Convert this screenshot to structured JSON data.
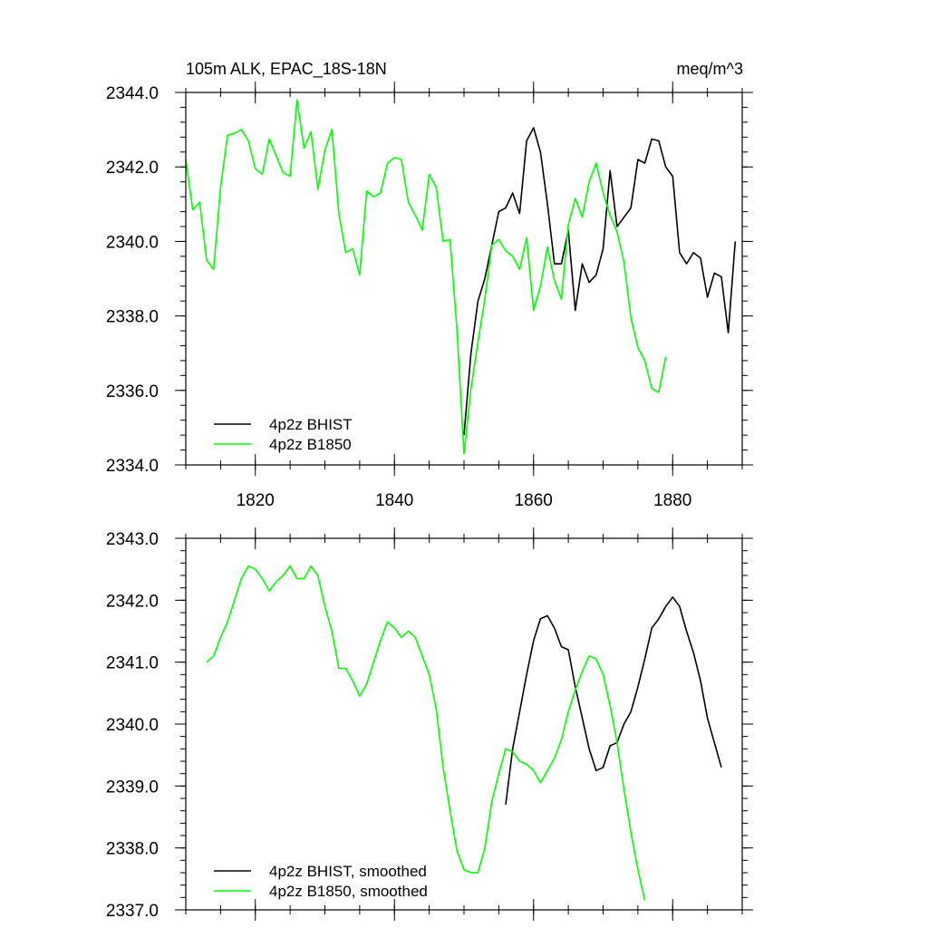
{
  "chart_data": [
    {
      "type": "line",
      "title": "105m ALK, EPAC_18S-18N",
      "units": "meq/m^3",
      "xlim": [
        1810,
        1890
      ],
      "ylim": [
        2334,
        2344
      ],
      "xticks": [
        1820,
        1840,
        1860,
        1880
      ],
      "xtick_labels": [
        "1820",
        "1840",
        "1860",
        "1880"
      ],
      "yticks": [
        2334,
        2336,
        2338,
        2340,
        2342,
        2344
      ],
      "ytick_labels": [
        "2334.0",
        "2336.0",
        "2338.0",
        "2340.0",
        "2342.0",
        "2344.0"
      ],
      "legend_position": "bottom-left",
      "series": [
        {
          "name": "4p2z BHIST",
          "color": "#000000",
          "x": [
            1850,
            1851,
            1852,
            1853,
            1854,
            1855,
            1856,
            1857,
            1858,
            1859,
            1860,
            1861,
            1862,
            1863,
            1864,
            1865,
            1866,
            1867,
            1868,
            1869,
            1870,
            1871,
            1872,
            1873,
            1874,
            1875,
            1876,
            1877,
            1878,
            1879,
            1880,
            1881,
            1882,
            1883,
            1884,
            1885,
            1886,
            1887,
            1888,
            1889
          ],
          "y": [
            2334.8,
            2337.0,
            2338.4,
            2339.0,
            2339.9,
            2340.8,
            2340.9,
            2341.3,
            2340.75,
            2342.7,
            2343.05,
            2342.4,
            2341.0,
            2339.4,
            2339.4,
            2340.3,
            2338.15,
            2339.4,
            2338.9,
            2339.1,
            2339.8,
            2341.9,
            2340.4,
            2340.65,
            2340.9,
            2342.2,
            2342.1,
            2342.75,
            2342.7,
            2342.0,
            2341.75,
            2339.7,
            2339.4,
            2339.7,
            2339.55,
            2338.5,
            2339.15,
            2339.05,
            2337.55,
            2340.0
          ]
        },
        {
          "name": "4p2z B1850",
          "color": "#00ff00",
          "x": [
            1810,
            1811,
            1812,
            1813,
            1814,
            1815,
            1816,
            1817,
            1818,
            1819,
            1820,
            1821,
            1822,
            1823,
            1824,
            1825,
            1826,
            1827,
            1828,
            1829,
            1830,
            1831,
            1832,
            1833,
            1834,
            1835,
            1836,
            1837,
            1838,
            1839,
            1840,
            1841,
            1842,
            1843,
            1844,
            1845,
            1846,
            1847,
            1848,
            1849,
            1850,
            1851,
            1852,
            1853,
            1854,
            1855,
            1856,
            1857,
            1858,
            1859,
            1860,
            1861,
            1862,
            1863,
            1864,
            1865,
            1866,
            1867,
            1868,
            1869,
            1870,
            1871,
            1872,
            1873,
            1874,
            1875,
            1876,
            1877,
            1878,
            1879
          ],
          "y": [
            2342.2,
            2340.85,
            2341.05,
            2339.5,
            2339.25,
            2341.45,
            2342.85,
            2342.9,
            2343.0,
            2342.7,
            2341.95,
            2341.8,
            2342.75,
            2342.3,
            2341.85,
            2341.75,
            2343.8,
            2342.5,
            2342.95,
            2341.4,
            2342.45,
            2343.0,
            2340.75,
            2339.7,
            2339.8,
            2339.1,
            2341.35,
            2341.2,
            2341.3,
            2342.1,
            2342.25,
            2342.2,
            2341.05,
            2340.7,
            2340.3,
            2341.8,
            2341.45,
            2340.0,
            2340.05,
            2337.6,
            2334.3,
            2336.05,
            2337.3,
            2338.45,
            2339.9,
            2340.05,
            2339.75,
            2339.6,
            2339.25,
            2340.1,
            2338.15,
            2338.8,
            2339.85,
            2338.95,
            2338.45,
            2340.45,
            2341.15,
            2340.65,
            2341.6,
            2342.1,
            2341.3,
            2340.7,
            2340.25,
            2339.45,
            2337.95,
            2337.15,
            2336.8,
            2336.05,
            2335.95,
            2336.9
          ]
        }
      ]
    },
    {
      "type": "line",
      "xlim": [
        1810,
        1890
      ],
      "ylim": [
        2337,
        2343
      ],
      "xticks": [
        1820,
        1840,
        1860,
        1880
      ],
      "yticks": [
        2337,
        2338,
        2339,
        2340,
        2341,
        2342,
        2343
      ],
      "ytick_labels": [
        "2337.0",
        "2338.0",
        "2339.0",
        "2340.0",
        "2341.0",
        "2342.0",
        "2343.0"
      ],
      "legend_position": "bottom-left",
      "series": [
        {
          "name": "4p2z BHIST, smoothed",
          "color": "#000000",
          "x": [
            1856,
            1857,
            1858,
            1859,
            1860,
            1861,
            1862,
            1863,
            1864,
            1865,
            1866,
            1867,
            1868,
            1869,
            1870,
            1871,
            1872,
            1873,
            1874,
            1875,
            1876,
            1877,
            1878,
            1879,
            1880,
            1881,
            1882,
            1883,
            1884,
            1885,
            1886,
            1887
          ],
          "y": [
            2338.7,
            2339.6,
            2340.2,
            2340.8,
            2341.35,
            2341.7,
            2341.75,
            2341.55,
            2341.25,
            2341.2,
            2340.6,
            2340.1,
            2339.6,
            2339.25,
            2339.3,
            2339.65,
            2339.7,
            2340.0,
            2340.2,
            2340.6,
            2341.05,
            2341.55,
            2341.7,
            2341.9,
            2342.05,
            2341.9,
            2341.5,
            2341.15,
            2340.7,
            2340.1,
            2339.7,
            2339.3
          ]
        },
        {
          "name": "4p2z B1850, smoothed",
          "color": "#00ff00",
          "x": [
            1813,
            1814,
            1815,
            1816,
            1817,
            1818,
            1819,
            1820,
            1821,
            1822,
            1823,
            1824,
            1825,
            1826,
            1827,
            1828,
            1829,
            1830,
            1831,
            1832,
            1833,
            1834,
            1835,
            1836,
            1837,
            1838,
            1839,
            1840,
            1841,
            1842,
            1843,
            1844,
            1845,
            1846,
            1847,
            1848,
            1849,
            1850,
            1851,
            1852,
            1853,
            1854,
            1855,
            1856,
            1857,
            1858,
            1859,
            1860,
            1861,
            1862,
            1863,
            1864,
            1865,
            1866,
            1867,
            1868,
            1869,
            1870,
            1871,
            1872,
            1873,
            1874,
            1875,
            1876
          ],
          "y": [
            2341.0,
            2341.1,
            2341.4,
            2341.65,
            2342.0,
            2342.35,
            2342.55,
            2342.5,
            2342.35,
            2342.15,
            2342.3,
            2342.4,
            2342.55,
            2342.35,
            2342.35,
            2342.55,
            2342.4,
            2341.9,
            2341.5,
            2340.9,
            2340.9,
            2340.7,
            2340.45,
            2340.65,
            2341.0,
            2341.35,
            2341.65,
            2341.55,
            2341.4,
            2341.5,
            2341.4,
            2341.1,
            2340.8,
            2340.25,
            2339.3,
            2338.6,
            2337.95,
            2337.65,
            2337.6,
            2337.6,
            2338.0,
            2338.75,
            2339.2,
            2339.6,
            2339.55,
            2339.4,
            2339.35,
            2339.25,
            2339.05,
            2339.25,
            2339.45,
            2339.75,
            2340.2,
            2340.55,
            2340.85,
            2341.1,
            2341.05,
            2340.8,
            2340.3,
            2339.7,
            2338.95,
            2338.25,
            2337.65,
            2337.15
          ]
        }
      ]
    }
  ]
}
